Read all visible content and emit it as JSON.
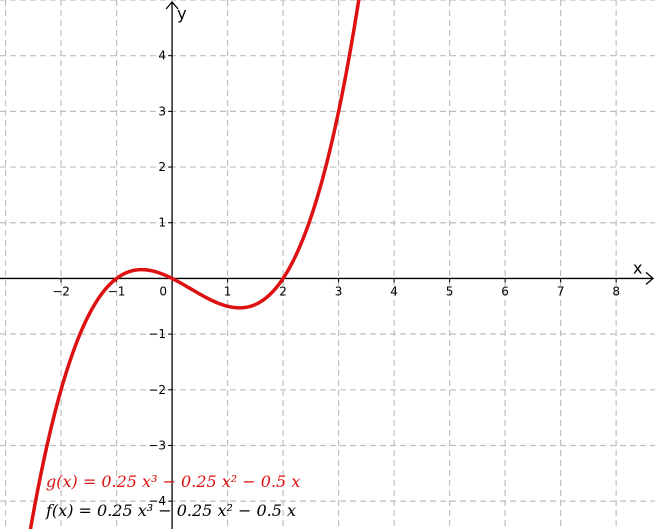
{
  "chart_data": {
    "type": "line",
    "title": "",
    "xlabel": "x",
    "ylabel": "y",
    "xlim": [
      -3.1,
      8.7
    ],
    "ylim": [
      -4.5,
      5.0
    ],
    "grid": true,
    "x_ticks": [
      -2,
      -1,
      1,
      2,
      3,
      4,
      5,
      6,
      7,
      8
    ],
    "y_ticks": [
      -4,
      -3,
      -2,
      -1,
      1,
      2,
      3,
      4
    ],
    "x_tick_labels": [
      "−2",
      "−1",
      "1",
      "2",
      "3",
      "4",
      "5",
      "6",
      "7",
      "8"
    ],
    "y_tick_labels": [
      "−4",
      "−3",
      "−2",
      "−1",
      "1",
      "2",
      "3",
      "4"
    ],
    "origin_label": "0",
    "series": [
      {
        "name": "g(x)",
        "coefficients": {
          "a3": 0.25,
          "a2": -0.25,
          "a1": -0.5,
          "a0": 0
        },
        "color": "#dd1111",
        "x_range": [
          -2.6,
          3.5
        ]
      }
    ],
    "legend": [
      {
        "label": "g(x)  =  0.25 x³ − 0.25 x² − 0.5 x",
        "color": "#dd1111"
      },
      {
        "label": "f(x)  =  0.25 x³ − 0.25 x² − 0.5 x",
        "color": "#000000"
      }
    ],
    "legend_position": "bottom-left"
  }
}
